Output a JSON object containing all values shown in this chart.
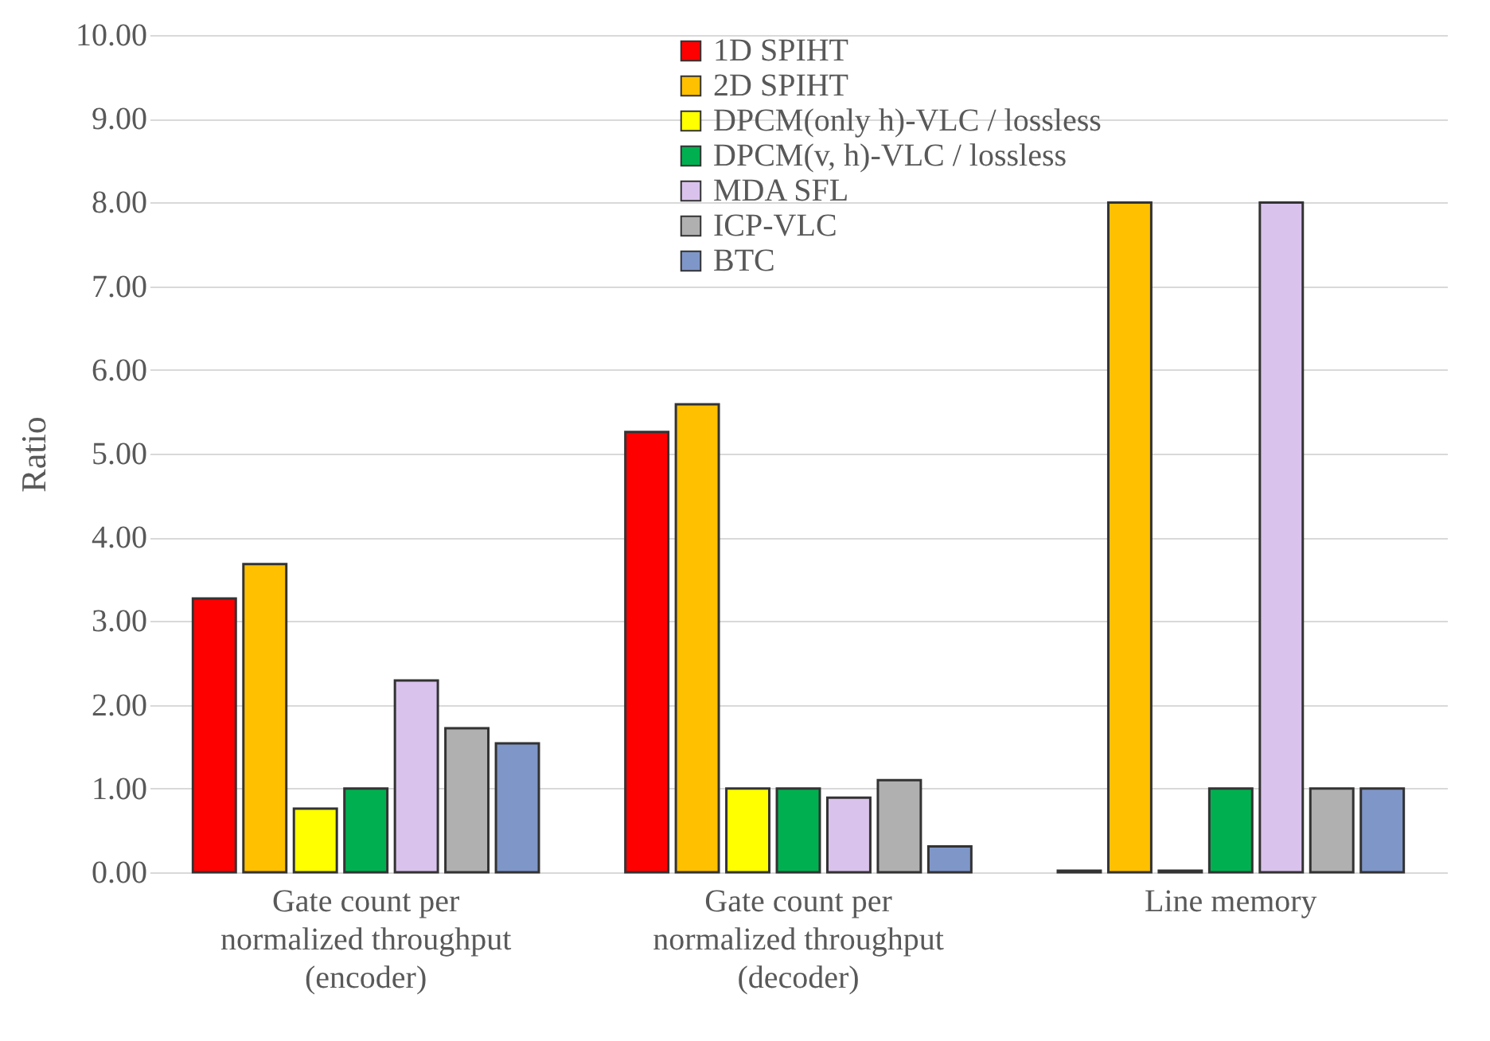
{
  "chart_data": {
    "type": "bar",
    "ylabel": "Ratio",
    "categories": [
      "Gate count per normalized throughput (encoder)",
      "Gate count per normalized throughput (decoder)",
      "Line memory"
    ],
    "series": [
      {
        "name": "1D SPIHT",
        "color": "#ff0000",
        "values": [
          3.27,
          5.26,
          0.02
        ]
      },
      {
        "name": "2D SPIHT",
        "color": "#ffc000",
        "values": [
          3.68,
          5.59,
          8.0
        ]
      },
      {
        "name": "DPCM(only h)-VLC / lossless",
        "color": "#ffff00",
        "values": [
          0.76,
          1.0,
          0.02
        ]
      },
      {
        "name": "DPCM(v, h)-VLC / lossless",
        "color": "#00b050",
        "values": [
          1.0,
          1.0,
          1.0
        ]
      },
      {
        "name": "MDA SFL",
        "color": "#d9c3ec",
        "values": [
          2.29,
          0.89,
          8.0
        ]
      },
      {
        "name": "ICP-VLC",
        "color": "#b0b0b0",
        "values": [
          1.72,
          1.1,
          1.0
        ]
      },
      {
        "name": "BTC",
        "color": "#7f96c8",
        "values": [
          1.54,
          0.31,
          1.0
        ]
      }
    ],
    "ylim": [
      0,
      10
    ],
    "yticks": [
      {
        "value": 0,
        "label": "0.00"
      },
      {
        "value": 1,
        "label": "1.00"
      },
      {
        "value": 2,
        "label": "2.00"
      },
      {
        "value": 3,
        "label": "3.00"
      },
      {
        "value": 4,
        "label": "4.00"
      },
      {
        "value": 5,
        "label": "5.00"
      },
      {
        "value": 6,
        "label": "6.00"
      },
      {
        "value": 7,
        "label": "7.00"
      },
      {
        "value": 8,
        "label": "8.00"
      },
      {
        "value": 9,
        "label": "9.00"
      },
      {
        "value": 10,
        "label": "10.00"
      }
    ],
    "grid": "y",
    "legend": "top"
  }
}
